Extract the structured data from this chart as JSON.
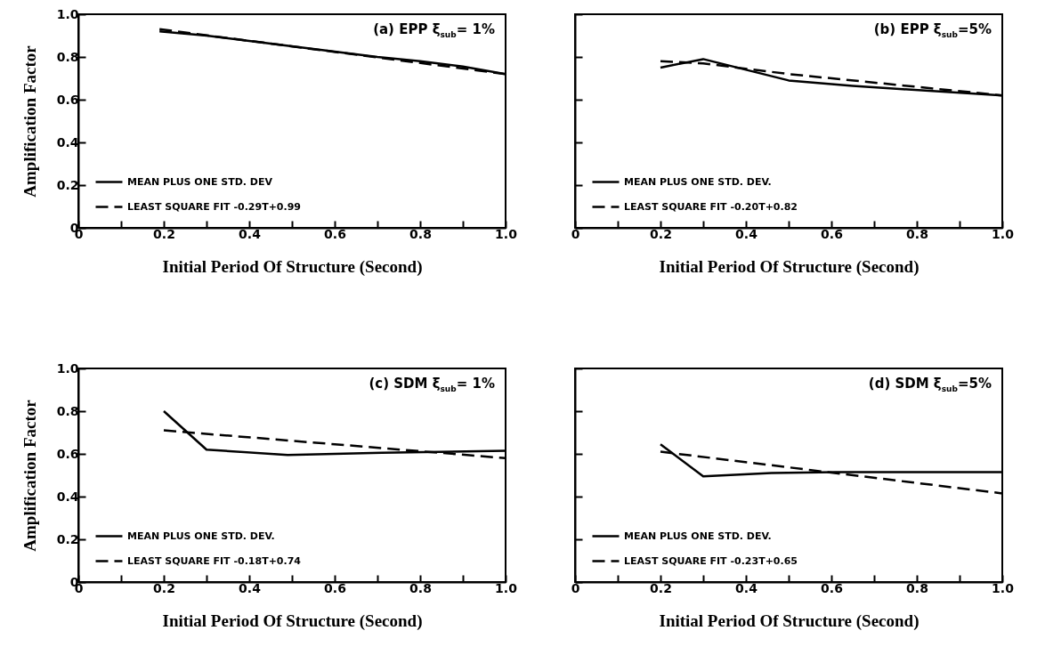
{
  "chart_data": [
    {
      "type": "line",
      "title": "(a) EPP ξ$_{sub}$= 1%",
      "xlabel": "Initial Period Of Structure (Second)",
      "ylabel": "Amplification Factor",
      "xlim": [
        0,
        1
      ],
      "ylim": [
        0,
        1
      ],
      "xticks": [
        0,
        {
          "value": 0.1,
          "label": null
        },
        0.2,
        {
          "value": 0.3,
          "label": null
        },
        0.4,
        {
          "value": 0.5,
          "label": null
        },
        0.6,
        {
          "value": 0.7,
          "label": null
        },
        0.8,
        {
          "value": 0.9,
          "label": null
        },
        {
          "value": 1,
          "label": "1.0"
        }
      ],
      "yticks": [
        0,
        0.2,
        0.4,
        0.6,
        0.8,
        {
          "value": 1,
          "label": "1.0"
        }
      ],
      "legend": "bottom left",
      "grid": false,
      "series": [
        {
          "name": "MEAN PLUS ONE STD. DEV",
          "color": "#000000",
          "line_style": "solid",
          "x": [
            0.19,
            0.3,
            0.4,
            0.5,
            0.6,
            0.7,
            0.8,
            0.9,
            1.0
          ],
          "values": [
            0.92,
            0.9,
            0.875,
            0.85,
            0.825,
            0.8,
            0.78,
            0.755,
            0.72
          ]
        },
        {
          "name": "LEAST SQUARE FIT -0.29T+0.99",
          "color": "#000000",
          "line_style": "dashed",
          "x": [
            0.19,
            1.0
          ],
          "values": [
            0.93,
            0.72
          ]
        }
      ]
    },
    {
      "type": "line",
      "title": "(b) EPP ξ$_{sub}$=5%",
      "xlabel": "Initial Period Of Structure (Second)",
      "xlim": [
        0,
        1
      ],
      "ylim": [
        0,
        1
      ],
      "tick_labels": "x",
      "xticks": [
        0,
        {
          "value": 0.1,
          "label": null
        },
        0.2,
        {
          "value": 0.3,
          "label": null
        },
        0.4,
        {
          "value": 0.5,
          "label": null
        },
        0.6,
        {
          "value": 0.7,
          "label": null
        },
        0.8,
        {
          "value": 0.9,
          "label": null
        },
        {
          "value": 1,
          "label": "1.0"
        }
      ],
      "yticks": [
        0,
        0.2,
        0.4,
        0.6,
        0.8,
        1
      ],
      "legend": "bottom left",
      "grid": false,
      "series": [
        {
          "name": "MEAN PLUS ONE STD. DEV.",
          "color": "#000000",
          "line_style": "solid",
          "x": [
            0.2,
            0.3,
            0.4,
            0.5,
            0.65,
            0.76,
            1.0
          ],
          "values": [
            0.75,
            0.79,
            0.74,
            0.69,
            0.665,
            0.65,
            0.62
          ]
        },
        {
          "name": "LEAST SQUARE FIT -0.20T+0.82",
          "color": "#000000",
          "line_style": "dashed",
          "x": [
            0.2,
            0.3,
            0.5,
            0.75,
            1.0
          ],
          "values": [
            0.78,
            0.77,
            0.72,
            0.67,
            0.62
          ]
        }
      ]
    },
    {
      "type": "line",
      "title": "(c) SDM ξ$_{sub}$= 1%",
      "xlabel": "Initial Period Of Structure (Second)",
      "ylabel": "Amplification Factor",
      "xlim": [
        0,
        1
      ],
      "ylim": [
        0,
        1
      ],
      "xticks": [
        0,
        {
          "value": 0.1,
          "label": null
        },
        0.2,
        {
          "value": 0.3,
          "label": null
        },
        0.4,
        {
          "value": 0.5,
          "label": null
        },
        0.6,
        {
          "value": 0.7,
          "label": null
        },
        0.8,
        {
          "value": 0.9,
          "label": null
        },
        {
          "value": 1,
          "label": "1.0"
        }
      ],
      "yticks": [
        0,
        0.2,
        0.4,
        0.6,
        0.8,
        {
          "value": 1,
          "label": "1.0"
        }
      ],
      "legend": "bottom left",
      "grid": false,
      "series": [
        {
          "name": "MEAN PLUS ONE STD. DEV.",
          "color": "#000000",
          "line_style": "solid",
          "x": [
            0.2,
            0.3,
            0.49,
            0.71,
            1.0
          ],
          "values": [
            0.8,
            0.62,
            0.595,
            0.605,
            0.615
          ]
        },
        {
          "name": "LEAST SQUARE FIT -0.18T+0.74",
          "color": "#000000",
          "line_style": "dashed",
          "x": [
            0.2,
            0.6,
            1.0
          ],
          "values": [
            0.71,
            0.645,
            0.58
          ]
        }
      ]
    },
    {
      "type": "line",
      "title": "(d) SDM ξ$_{sub}$=5%",
      "xlabel": "Initial Period Of Structure (Second)",
      "xlim": [
        0,
        1
      ],
      "ylim": [
        0,
        1
      ],
      "tick_labels": "x",
      "xticks": [
        0,
        {
          "value": 0.1,
          "label": null
        },
        0.2,
        {
          "value": 0.3,
          "label": null
        },
        0.4,
        {
          "value": 0.5,
          "label": null
        },
        0.6,
        {
          "value": 0.7,
          "label": null
        },
        0.8,
        {
          "value": 0.9,
          "label": null
        },
        {
          "value": 1,
          "label": "1.0"
        }
      ],
      "yticks": [
        0,
        0.2,
        0.4,
        0.6,
        0.8,
        1
      ],
      "legend": "bottom left",
      "grid": false,
      "series": [
        {
          "name": "MEAN PLUS ONE STD. DEV.",
          "color": "#000000",
          "line_style": "solid",
          "x": [
            0.2,
            0.3,
            0.46,
            0.61,
            1.0
          ],
          "values": [
            0.645,
            0.495,
            0.51,
            0.515,
            0.515
          ]
        },
        {
          "name": "LEAST SQUARE FIT -0.23T+0.65",
          "color": "#000000",
          "line_style": "dashed",
          "x": [
            0.2,
            1.0
          ],
          "values": [
            0.61,
            0.415
          ]
        }
      ]
    }
  ]
}
